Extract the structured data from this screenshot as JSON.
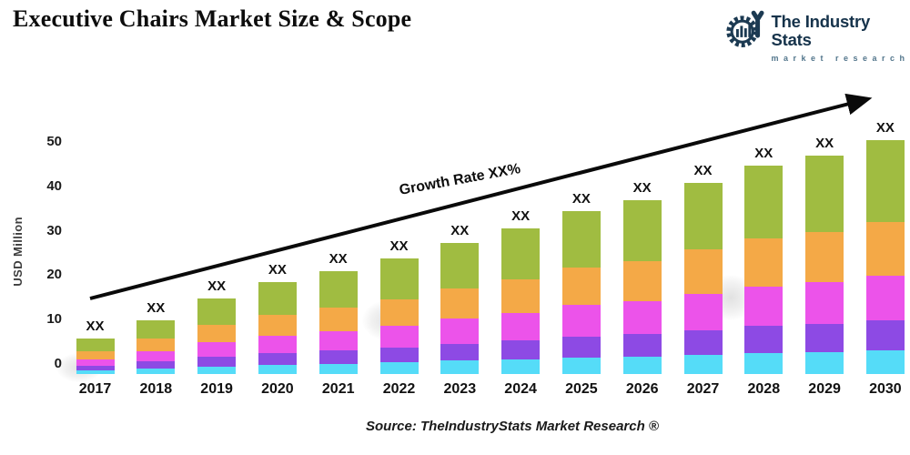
{
  "header": {
    "title": "Executive Chairs Market Size & Scope"
  },
  "logo": {
    "name": "The Industry Stats",
    "tagline": "market research",
    "icon": "gear-wrench-barchart-icon",
    "navy": "#1C3A52",
    "tagline_color": "#53768C"
  },
  "chart_data": {
    "type": "bar",
    "stacked": true,
    "title": "Executive Chairs Market Size & Scope",
    "xlabel": "",
    "ylabel": "USD Million",
    "ylim": [
      0,
      55
    ],
    "yticks": [
      0,
      10,
      20,
      30,
      40,
      50
    ],
    "grid": false,
    "legend": "none",
    "bar_value_label": "XX",
    "growth_label": "Growth Rate XX%",
    "categories": [
      "2017",
      "2018",
      "2019",
      "2020",
      "2021",
      "2022",
      "2023",
      "2024",
      "2025",
      "2026",
      "2027",
      "2028",
      "2029",
      "2030"
    ],
    "series": [
      {
        "name": "segment-cyan",
        "color": "#55DCF8",
        "values": [
          0.8,
          1.2,
          1.7,
          2.1,
          2.3,
          2.6,
          3.0,
          3.3,
          3.7,
          3.9,
          4.3,
          4.7,
          4.9,
          5.3
        ]
      },
      {
        "name": "segment-purple",
        "color": "#8D4AE4",
        "values": [
          1.0,
          1.6,
          2.2,
          2.7,
          3.0,
          3.4,
          3.8,
          4.3,
          4.8,
          5.1,
          5.6,
          6.1,
          6.4,
          6.8
        ]
      },
      {
        "name": "segment-magenta",
        "color": "#EC53EA",
        "values": [
          1.5,
          2.3,
          3.2,
          3.9,
          4.4,
          4.9,
          5.6,
          6.2,
          7.0,
          7.4,
          8.2,
          8.9,
          9.3,
          10.0
        ]
      },
      {
        "name": "segment-orange",
        "color": "#F4A947",
        "values": [
          1.8,
          2.8,
          3.9,
          4.7,
          5.3,
          6.0,
          6.8,
          7.5,
          8.4,
          9.0,
          9.9,
          10.8,
          11.3,
          12.1
        ]
      },
      {
        "name": "segment-green",
        "color": "#A0BC41",
        "values": [
          2.8,
          4.2,
          6.0,
          7.2,
          8.1,
          9.1,
          10.3,
          11.5,
          12.8,
          13.7,
          15.1,
          16.4,
          17.2,
          18.4
        ]
      }
    ],
    "totals_usd_million_estimated": [
      8,
      12,
      17,
      20.5,
      23,
      26,
      29.5,
      33,
      36.5,
      39,
      43,
      47,
      49,
      52.5
    ]
  },
  "footer": {
    "source": "Source: TheIndustryStats Market Research ®"
  }
}
